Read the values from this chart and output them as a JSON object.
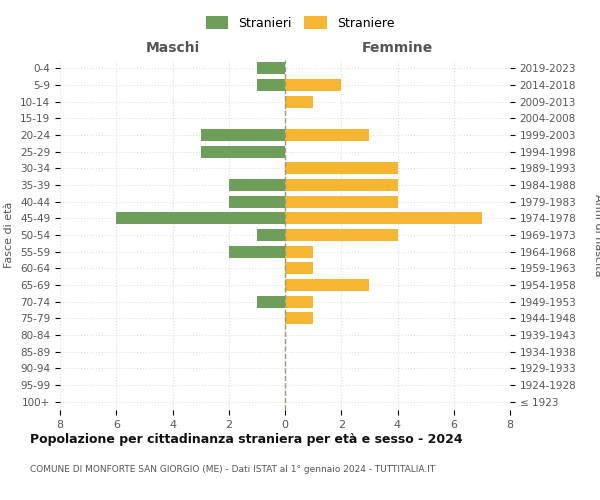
{
  "age_groups": [
    "100+",
    "95-99",
    "90-94",
    "85-89",
    "80-84",
    "75-79",
    "70-74",
    "65-69",
    "60-64",
    "55-59",
    "50-54",
    "45-49",
    "40-44",
    "35-39",
    "30-34",
    "25-29",
    "20-24",
    "15-19",
    "10-14",
    "5-9",
    "0-4"
  ],
  "birth_years": [
    "≤ 1923",
    "1924-1928",
    "1929-1933",
    "1934-1938",
    "1939-1943",
    "1944-1948",
    "1949-1953",
    "1954-1958",
    "1959-1963",
    "1964-1968",
    "1969-1973",
    "1974-1978",
    "1979-1983",
    "1984-1988",
    "1989-1993",
    "1994-1998",
    "1999-2003",
    "2004-2008",
    "2009-2013",
    "2014-2018",
    "2019-2023"
  ],
  "maschi": [
    0,
    0,
    0,
    0,
    0,
    0,
    1,
    0,
    0,
    2,
    1,
    6,
    2,
    2,
    0,
    3,
    3,
    0,
    0,
    1,
    1
  ],
  "femmine": [
    0,
    0,
    0,
    0,
    0,
    1,
    1,
    3,
    1,
    1,
    4,
    7,
    4,
    4,
    4,
    0,
    3,
    0,
    1,
    2,
    0
  ],
  "color_maschi": "#6d9e5a",
  "color_femmine": "#f5b731",
  "title": "Popolazione per cittadinanza straniera per età e sesso - 2024",
  "subtitle": "COMUNE DI MONFORTE SAN GIORGIO (ME) - Dati ISTAT al 1° gennaio 2024 - TUTTITALIA.IT",
  "legend_maschi": "Stranieri",
  "legend_femmine": "Straniere",
  "xlabel_left": "Maschi",
  "xlabel_right": "Femmine",
  "ylabel_left": "Fasce di età",
  "ylabel_right": "Anni di nascita",
  "xlim": 8,
  "background_color": "#ffffff",
  "grid_color": "#dddddd"
}
